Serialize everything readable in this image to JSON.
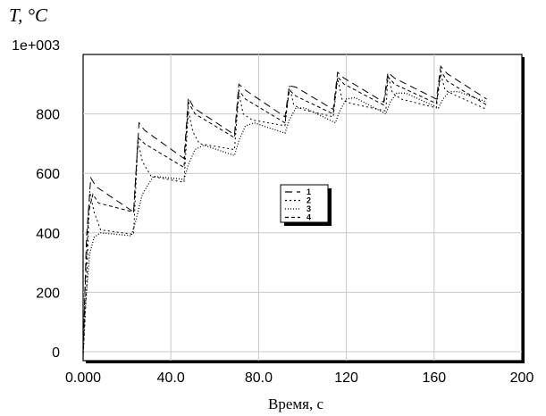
{
  "chart_data": {
    "type": "line",
    "title": "",
    "ylabel": "T, °C",
    "xlabel": "Время, с",
    "xlim": [
      0,
      200
    ],
    "ylim": [
      -30,
      1000
    ],
    "x_ticks": [
      0,
      40,
      80,
      120,
      160,
      200
    ],
    "x_tick_labels": [
      "0.000",
      "40.0",
      "80.0",
      "120",
      "160",
      "200"
    ],
    "y_ticks": [
      0,
      200,
      400,
      600,
      800,
      1000
    ],
    "y_tick_labels": [
      "0",
      "200",
      "400",
      "600",
      "800",
      "1e+003"
    ],
    "grid": true,
    "legend_position": "center",
    "series": [
      {
        "name": "1",
        "dash": "8,5",
        "points": [
          [
            0,
            0
          ],
          [
            1.5,
            380
          ],
          [
            3.5,
            585
          ],
          [
            6,
            555
          ],
          [
            23,
            470
          ],
          [
            25.5,
            770
          ],
          [
            28,
            745
          ],
          [
            46,
            650
          ],
          [
            48,
            855
          ],
          [
            50.5,
            820
          ],
          [
            69,
            730
          ],
          [
            71,
            900
          ],
          [
            74,
            880
          ],
          [
            92,
            790
          ],
          [
            94,
            895
          ],
          [
            97,
            890
          ],
          [
            114,
            815
          ],
          [
            116,
            940
          ],
          [
            119,
            920
          ],
          [
            137,
            840
          ],
          [
            139,
            940
          ],
          [
            142,
            920
          ],
          [
            161,
            850
          ],
          [
            163,
            960
          ],
          [
            166,
            935
          ],
          [
            184,
            850
          ]
        ]
      },
      {
        "name": "2",
        "dash": "2,3",
        "points": [
          [
            0,
            -20
          ],
          [
            1.5,
            200
          ],
          [
            3,
            540
          ],
          [
            5,
            470
          ],
          [
            8,
            410
          ],
          [
            23,
            395
          ],
          [
            25,
            710
          ],
          [
            27,
            640
          ],
          [
            31,
            590
          ],
          [
            46,
            570
          ],
          [
            48,
            810
          ],
          [
            50,
            740
          ],
          [
            53,
            700
          ],
          [
            69,
            680
          ],
          [
            71,
            870
          ],
          [
            73,
            800
          ],
          [
            77,
            780
          ],
          [
            92,
            760
          ],
          [
            94,
            895
          ],
          [
            96,
            830
          ],
          [
            100,
            815
          ],
          [
            114,
            790
          ],
          [
            116,
            920
          ],
          [
            118,
            850
          ],
          [
            122,
            835
          ],
          [
            138,
            810
          ],
          [
            139,
            930
          ],
          [
            141,
            870
          ],
          [
            145,
            850
          ],
          [
            161,
            820
          ],
          [
            163,
            935
          ],
          [
            165,
            880
          ],
          [
            169,
            865
          ],
          [
            184,
            815
          ]
        ]
      },
      {
        "name": "3",
        "dash": "1,2",
        "points": [
          [
            0,
            -10
          ],
          [
            1,
            150
          ],
          [
            3,
            330
          ],
          [
            5,
            385
          ],
          [
            8,
            400
          ],
          [
            22,
            390
          ],
          [
            24,
            440
          ],
          [
            27,
            530
          ],
          [
            32,
            590
          ],
          [
            46,
            580
          ],
          [
            48,
            630
          ],
          [
            51,
            680
          ],
          [
            55,
            695
          ],
          [
            69,
            660
          ],
          [
            71,
            710
          ],
          [
            74,
            760
          ],
          [
            78,
            770
          ],
          [
            92,
            735
          ],
          [
            94,
            780
          ],
          [
            97,
            820
          ],
          [
            101,
            820
          ],
          [
            115,
            770
          ],
          [
            117,
            810
          ],
          [
            120,
            850
          ],
          [
            124,
            855
          ],
          [
            138,
            800
          ],
          [
            140,
            840
          ],
          [
            143,
            870
          ],
          [
            147,
            870
          ],
          [
            162,
            820
          ],
          [
            164,
            850
          ],
          [
            167,
            875
          ],
          [
            171,
            875
          ],
          [
            184,
            840
          ]
        ]
      },
      {
        "name": "4",
        "dash": "4,3",
        "points": [
          [
            0,
            -5
          ],
          [
            1,
            230
          ],
          [
            2.5,
            470
          ],
          [
            4.5,
            530
          ],
          [
            7,
            500
          ],
          [
            23,
            470
          ],
          [
            25,
            720
          ],
          [
            28,
            700
          ],
          [
            46,
            620
          ],
          [
            48,
            840
          ],
          [
            51,
            800
          ],
          [
            69,
            720
          ],
          [
            71,
            880
          ],
          [
            74,
            850
          ],
          [
            92,
            770
          ],
          [
            94,
            880
          ],
          [
            97,
            860
          ],
          [
            114,
            800
          ],
          [
            116,
            925
          ],
          [
            119,
            900
          ],
          [
            137,
            830
          ],
          [
            139,
            925
          ],
          [
            142,
            900
          ],
          [
            161,
            835
          ],
          [
            163,
            945
          ],
          [
            166,
            910
          ],
          [
            184,
            830
          ]
        ]
      }
    ]
  }
}
